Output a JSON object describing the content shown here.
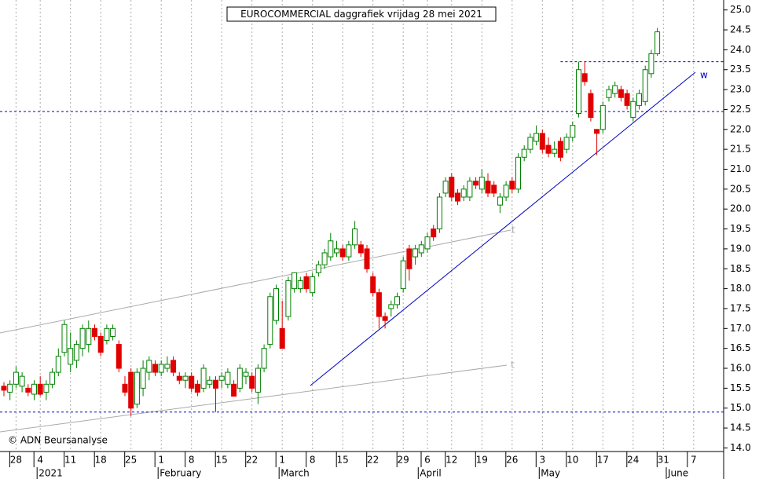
{
  "chart_data": {
    "type": "candlestick",
    "title": "EUROCOMMERCIAL daggrafiek vrijdag 28 mei 2021",
    "source": "© ADN Beursanalyse",
    "annotations": [
      "w",
      "t",
      "t"
    ],
    "categories": [
      null,
      null,
      "28",
      null,
      null,
      null,
      "4",
      null,
      null,
      null,
      null,
      "11",
      null,
      null,
      null,
      null,
      "18",
      null,
      null,
      null,
      null,
      "25",
      null,
      null,
      null,
      null,
      "1",
      null,
      null,
      null,
      null,
      "8",
      null,
      null,
      null,
      null,
      "15",
      null,
      null,
      null,
      null,
      "22",
      null,
      null,
      null,
      null,
      "1",
      null,
      null,
      null,
      null,
      "8",
      null,
      null,
      null,
      null,
      "15",
      null,
      null,
      null,
      null,
      "22",
      null,
      null,
      null,
      null,
      "29",
      null,
      null,
      null,
      "6",
      null,
      null,
      null,
      "12",
      null,
      null,
      null,
      null,
      "19",
      null,
      null,
      null,
      null,
      "26",
      null,
      null,
      null,
      null,
      "3",
      null,
      null,
      null,
      null,
      "10",
      null,
      null,
      null,
      null,
      "17",
      null,
      null,
      null,
      null,
      "24",
      null,
      null,
      null,
      null,
      "31",
      null,
      null,
      null,
      null,
      "7",
      null,
      null,
      null,
      null
    ],
    "months": [
      null,
      null,
      null,
      null,
      null,
      null,
      "2021",
      null,
      null,
      null,
      null,
      null,
      null,
      null,
      null,
      null,
      null,
      null,
      null,
      null,
      null,
      null,
      null,
      null,
      null,
      null,
      "February",
      null,
      null,
      null,
      null,
      null,
      null,
      null,
      null,
      null,
      null,
      null,
      null,
      null,
      null,
      null,
      null,
      null,
      null,
      null,
      "March",
      null,
      null,
      null,
      null,
      null,
      null,
      null,
      null,
      null,
      null,
      null,
      null,
      null,
      null,
      null,
      null,
      null,
      null,
      null,
      null,
      null,
      null,
      "April",
      null,
      null,
      null,
      null,
      null,
      null,
      null,
      null,
      null,
      null,
      null,
      null,
      null,
      null,
      null,
      null,
      null,
      null,
      null,
      "May",
      null,
      null,
      null,
      null,
      null,
      null,
      null,
      null,
      null,
      null,
      null,
      null,
      null,
      null,
      null,
      null,
      null,
      null,
      null,
      null,
      "June",
      null,
      null,
      null,
      null,
      null,
      null,
      null,
      null
    ],
    "open": [
      15.55,
      15.4,
      15.6,
      15.55,
      15.5,
      15.35,
      15.6,
      15.4,
      15.6,
      15.9,
      16.4,
      16.1,
      16.2,
      16.5,
      16.6,
      17.0,
      16.8,
      16.7,
      16.8,
      16.6,
      15.6,
      15.9,
      15.1,
      15.5,
      15.9,
      16.1,
      15.9,
      16.0,
      16.2,
      15.8,
      15.7,
      15.8,
      15.6,
      15.5,
      15.6,
      15.7,
      15.7,
      15.6,
      15.6,
      15.5,
      15.8,
      15.8,
      15.4,
      16.0,
      16.6,
      17.2,
      17.0,
      17.3,
      18.0,
      18.0,
      18.3,
      17.9,
      18.4,
      18.6,
      18.8,
      18.9,
      19.0,
      18.8,
      19.1,
      19.1,
      19.0,
      18.3,
      17.9,
      17.3,
      17.5,
      17.6,
      18.0,
      19.0,
      18.8,
      18.9,
      19.0,
      19.5,
      19.5,
      20.4,
      20.8,
      20.4,
      20.3,
      20.3,
      20.7,
      20.5,
      20.7,
      20.6,
      20.1,
      20.3,
      20.7,
      20.5,
      21.3,
      21.5,
      21.7,
      21.9,
      21.6,
      21.4,
      21.7,
      21.5,
      21.8,
      22.4,
      23.4,
      22.9,
      22.0,
      22.0,
      22.8,
      22.9,
      23.0,
      22.9,
      22.3,
      22.6,
      22.7,
      23.4,
      23.9,
      null,
      null,
      null,
      null,
      null,
      null,
      null,
      null,
      null,
      null
    ],
    "high": [
      15.65,
      15.7,
      16.05,
      15.9,
      15.6,
      15.7,
      15.8,
      15.7,
      16.0,
      16.5,
      17.2,
      16.9,
      16.7,
      17.1,
      17.2,
      17.1,
      16.9,
      17.1,
      17.1,
      16.7,
      15.8,
      16.0,
      16.0,
      16.2,
      16.3,
      16.2,
      16.2,
      16.3,
      16.3,
      15.9,
      15.9,
      15.9,
      15.7,
      16.1,
      15.8,
      15.8,
      15.9,
      16.0,
      15.7,
      16.1,
      16.0,
      15.9,
      16.1,
      16.6,
      17.9,
      18.1,
      17.7,
      18.3,
      18.4,
      18.3,
      18.4,
      18.4,
      18.7,
      19.0,
      19.4,
      19.2,
      19.1,
      19.2,
      19.7,
      19.2,
      19.1,
      18.4,
      18.0,
      17.4,
      17.7,
      17.9,
      18.8,
      19.1,
      19.1,
      19.2,
      19.4,
      19.6,
      20.4,
      20.8,
      20.9,
      20.5,
      20.6,
      20.8,
      20.8,
      21.0,
      20.9,
      20.7,
      20.4,
      20.7,
      20.8,
      21.4,
      21.6,
      21.9,
      22.1,
      22.0,
      21.8,
      21.7,
      21.8,
      21.9,
      22.2,
      23.7,
      23.7,
      23.0,
      22.0,
      22.7,
      23.1,
      23.2,
      23.1,
      23.0,
      22.8,
      23.0,
      23.6,
      24.0,
      24.55,
      null,
      null,
      null,
      null,
      null,
      null,
      null,
      null,
      null,
      null
    ],
    "low": [
      15.3,
      15.2,
      15.5,
      15.4,
      15.3,
      15.2,
      15.3,
      15.2,
      15.5,
      15.8,
      16.3,
      15.9,
      16.0,
      16.3,
      16.4,
      16.7,
      16.3,
      16.6,
      16.7,
      15.9,
      15.3,
      14.8,
      15.0,
      15.3,
      15.7,
      15.8,
      15.8,
      15.9,
      15.8,
      15.6,
      15.5,
      15.4,
      15.3,
      15.4,
      15.5,
      14.9,
      15.5,
      15.5,
      15.3,
      15.4,
      15.6,
      15.4,
      15.1,
      15.9,
      16.5,
      17.1,
      16.5,
      17.2,
      17.9,
      17.9,
      17.9,
      17.8,
      18.3,
      18.5,
      18.7,
      18.8,
      18.7,
      18.7,
      19.0,
      18.8,
      18.4,
      17.8,
      17.0,
      17.0,
      17.3,
      17.5,
      17.9,
      18.2,
      18.6,
      18.8,
      18.9,
      19.2,
      19.4,
      20.3,
      20.2,
      20.1,
      20.2,
      20.2,
      20.5,
      20.4,
      20.3,
      20.3,
      19.9,
      20.2,
      20.4,
      20.4,
      21.2,
      21.4,
      21.6,
      21.4,
      21.3,
      21.3,
      21.2,
      21.4,
      21.7,
      22.3,
      23.1,
      22.2,
      21.35,
      21.9,
      22.7,
      22.8,
      22.7,
      22.5,
      22.2,
      22.5,
      22.6,
      23.3,
      23.85,
      null,
      null,
      null,
      null,
      null,
      null,
      null,
      null,
      null,
      null
    ],
    "close": [
      15.45,
      15.6,
      15.9,
      15.8,
      15.4,
      15.6,
      15.35,
      15.6,
      15.9,
      16.3,
      17.1,
      16.5,
      16.6,
      17.0,
      17.0,
      16.8,
      16.4,
      17.0,
      17.0,
      16.0,
      15.4,
      15.0,
      15.9,
      16.0,
      16.2,
      15.9,
      16.1,
      16.1,
      15.9,
      15.7,
      15.8,
      15.5,
      15.4,
      16.0,
      15.7,
      15.5,
      15.8,
      15.9,
      15.3,
      16.0,
      15.9,
      15.5,
      16.0,
      16.5,
      17.8,
      18.0,
      16.5,
      18.2,
      18.4,
      18.2,
      18.0,
      18.3,
      18.6,
      18.9,
      19.2,
      19.0,
      18.8,
      19.1,
      19.5,
      18.9,
      18.5,
      17.9,
      17.3,
      17.2,
      17.6,
      17.8,
      18.7,
      18.5,
      19.0,
      19.1,
      19.3,
      19.3,
      20.3,
      20.7,
      20.3,
      20.2,
      20.5,
      20.7,
      20.6,
      20.8,
      20.4,
      20.4,
      20.3,
      20.6,
      20.5,
      21.3,
      21.5,
      21.8,
      21.9,
      21.5,
      21.4,
      21.5,
      21.3,
      21.8,
      22.1,
      23.5,
      23.2,
      22.3,
      21.9,
      22.6,
      23.0,
      23.1,
      22.8,
      22.6,
      22.7,
      22.9,
      23.5,
      23.9,
      24.45,
      null,
      null,
      null,
      null,
      null,
      null,
      null,
      null,
      null,
      null
    ],
    "up_color": "#008000",
    "down_color": "#e00000",
    "levels": [
      22.45,
      14.9,
      23.7
    ],
    "level_color": "#0000c0",
    "ylim": [
      13.91,
      25.25
    ],
    "yticks": [
      {
        "value": 14,
        "label": "14.0"
      },
      14.5,
      {
        "value": 15,
        "label": "15.0"
      },
      15.5,
      {
        "value": 16,
        "label": "16.0"
      },
      16.5,
      {
        "value": 17,
        "label": "17.0"
      },
      17.5,
      {
        "value": 18,
        "label": "18.0"
      },
      18.5,
      {
        "value": 19,
        "label": "19.0"
      },
      19.5,
      {
        "value": 20,
        "label": "20.0"
      },
      20.5,
      {
        "value": 21,
        "label": "21.0"
      },
      21.5,
      {
        "value": 22,
        "label": "22.0"
      },
      22.5,
      {
        "value": 23,
        "label": "23.0"
      },
      23.5,
      {
        "value": 24,
        "label": "24.0"
      },
      24.5,
      {
        "value": 25,
        "label": "25.0"
      }
    ],
    "grid": true
  }
}
